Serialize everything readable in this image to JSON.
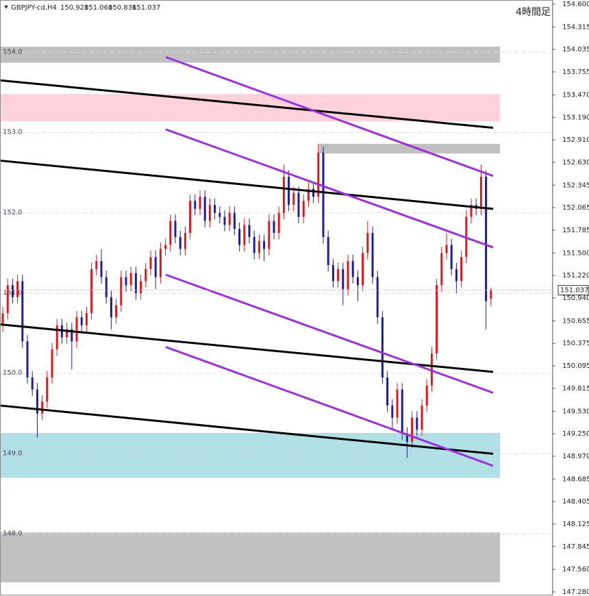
{
  "chart_data": {
    "type": "candlestick",
    "title": "4時間足",
    "symbol": "GBPJPY-cd,H4",
    "up_color": "#e8141c",
    "down_color": "#1c1c9c",
    "ylim": [
      147.28,
      154.6
    ],
    "yticks": [
      {
        "value": 154.6,
        "label": "154.600"
      },
      154.315,
      154.035,
      153.755,
      {
        "value": 153.47,
        "label": "153.470"
      },
      {
        "value": 153.19,
        "label": "153.190"
      },
      {
        "value": 152.91,
        "label": "152.910"
      },
      {
        "value": 152.63,
        "label": "152.630"
      },
      152.345,
      152.065,
      151.785,
      {
        "value": 151.5,
        "label": "151.500"
      },
      {
        "value": 151.22,
        "label": "151.220"
      },
      {
        "value": 150.94,
        "label": "150.940"
      },
      150.655,
      150.375,
      150.095,
      149.815,
      {
        "value": 149.53,
        "label": "149.530"
      },
      {
        "value": 149.25,
        "label": "149.250"
      },
      {
        "value": 148.97,
        "label": "148.970"
      },
      148.685,
      148.405,
      148.125,
      147.845,
      {
        "value": 147.56,
        "label": "147.560"
      },
      {
        "value": 147.28,
        "label": "147.280"
      }
    ],
    "levels": [
      {
        "value": 154,
        "label": "154.0"
      },
      {
        "value": 153,
        "label": "153.0"
      },
      {
        "value": 152,
        "label": "152.0"
      },
      {
        "value": 151,
        "label": "151.0"
      },
      {
        "value": 150,
        "label": "150.0"
      },
      {
        "value": 149,
        "label": "149.0"
      },
      {
        "value": 148,
        "label": "148.0"
      }
    ],
    "zones": [
      {
        "from": 153.87,
        "to": 154.07,
        "color": "#c0c0c0"
      },
      {
        "from": 153.14,
        "to": 153.48,
        "color": "#ffd1da"
      },
      {
        "from": 152.74,
        "to": 152.86,
        "color": "#c0c0c0"
      },
      {
        "from": 148.7,
        "to": 149.26,
        "color": "#b0e0e6"
      },
      {
        "from": 147.4,
        "to": 148.02,
        "color": "#c0c0c0"
      }
    ],
    "trendlines": [
      {
        "color": "#000000",
        "values": [
          153.65,
          153.06
        ]
      },
      {
        "color": "#000000",
        "values": [
          152.65,
          152.05
        ]
      },
      {
        "color": "#000000",
        "values": [
          150.61,
          150.02
        ]
      },
      {
        "color": "#000000",
        "values": [
          149.6,
          149.0
        ]
      },
      {
        "color": "#9b30d9",
        "values": [
          153.94,
          152.46
        ]
      },
      {
        "color": "#9b30d9",
        "values": [
          153.04,
          151.57
        ]
      },
      {
        "color": "#9b30d9",
        "values": [
          151.23,
          149.76
        ]
      },
      {
        "color": "#9b30d9",
        "values": [
          150.33,
          148.85
        ]
      }
    ],
    "open": [
      150.6,
      150.75,
      151.1,
      150.95,
      151.15,
      150.4,
      149.95,
      149.8,
      149.5,
      149.65,
      149.95,
      150.3,
      150.6,
      150.45,
      150.55,
      150.4,
      150.7,
      150.6,
      150.75,
      151.3,
      151.4,
      151.2,
      150.95,
      150.7,
      150.85,
      151.2,
      151.1,
      151.25,
      151.0,
      151.15,
      151.3,
      151.45,
      151.2,
      151.55,
      151.6,
      151.9,
      151.7,
      151.55,
      151.75,
      152.15,
      152.05,
      152.2,
      151.9,
      152.1,
      152.0,
      151.95,
      151.85,
      152.0,
      151.8,
      151.6,
      151.85,
      151.7,
      151.5,
      151.65,
      151.55,
      151.9,
      151.75,
      152.0,
      152.45,
      152.1,
      152.25,
      151.95,
      152.15,
      152.3,
      152.2,
      152.75,
      151.7,
      151.35,
      151.15,
      151.3,
      151.05,
      151.4,
      151.2,
      151.1,
      151.5,
      151.75,
      151.2,
      150.7,
      149.95,
      149.6,
      149.45,
      149.8,
      149.25,
      149.15,
      149.45,
      149.3,
      149.6,
      149.85,
      150.25,
      151.1,
      151.5,
      151.6,
      151.3,
      151.15,
      151.45,
      151.95,
      152.1,
      152.05,
      152.45,
      150.928
    ],
    "high": [
      150.83,
      151.18,
      151.18,
      151.23,
      151.23,
      150.48,
      150.03,
      149.88,
      149.73,
      150.03,
      150.38,
      150.68,
      150.68,
      150.63,
      150.63,
      150.78,
      150.78,
      150.83,
      151.38,
      151.48,
      151.55,
      151.28,
      151.03,
      150.93,
      151.28,
      151.28,
      151.33,
      151.33,
      151.23,
      151.38,
      151.53,
      151.53,
      151.63,
      151.68,
      151.98,
      151.98,
      151.78,
      151.83,
      152.23,
      152.23,
      152.28,
      152.28,
      152.18,
      152.18,
      152.08,
      152.03,
      152.08,
      152.08,
      151.88,
      151.93,
      151.93,
      151.78,
      151.73,
      151.73,
      151.98,
      151.98,
      152.08,
      152.6,
      152.53,
      152.33,
      152.33,
      152.23,
      152.38,
      152.38,
      152.86,
      152.83,
      151.78,
      151.43,
      151.38,
      151.38,
      151.48,
      151.48,
      151.28,
      151.58,
      151.9,
      151.83,
      151.28,
      150.78,
      150.03,
      149.68,
      149.88,
      149.88,
      149.33,
      149.53,
      149.53,
      149.68,
      149.93,
      150.33,
      151.18,
      151.58,
      151.75,
      151.68,
      151.38,
      151.53,
      152.03,
      152.18,
      152.18,
      152.6,
      152.53,
      151.068
    ],
    "low": [
      150.52,
      150.67,
      150.87,
      150.87,
      150.32,
      149.87,
      149.72,
      149.2,
      149.42,
      149.57,
      149.87,
      150.22,
      150.37,
      150.37,
      150.05,
      150.32,
      150.52,
      150.52,
      150.67,
      151.22,
      151.12,
      150.87,
      150.55,
      150.62,
      150.77,
      151.02,
      151.02,
      150.92,
      150.92,
      151.07,
      151.22,
      151.05,
      151.12,
      151.47,
      151.52,
      151.62,
      151.47,
      151.47,
      151.67,
      151.97,
      151.97,
      151.82,
      151.82,
      151.92,
      151.87,
      151.77,
      151.77,
      151.72,
      151.52,
      151.52,
      151.62,
      151.42,
      151.42,
      151.4,
      151.47,
      151.67,
      151.67,
      151.92,
      152.02,
      152.02,
      151.87,
      151.87,
      152.07,
      152.12,
      152.12,
      151.62,
      151.27,
      151.07,
      151.07,
      150.85,
      150.97,
      151.12,
      150.9,
      151.02,
      151.42,
      151.12,
      150.62,
      149.87,
      149.52,
      149.3,
      149.37,
      149.17,
      148.95,
      149.07,
      149.22,
      149.22,
      149.52,
      149.77,
      150.17,
      151.02,
      151.42,
      151.22,
      151.0,
      151.07,
      151.37,
      151.87,
      151.97,
      151.97,
      150.55,
      150.836
    ],
    "close": [
      150.75,
      151.1,
      150.95,
      151.15,
      150.4,
      149.95,
      149.8,
      149.5,
      149.65,
      149.95,
      150.3,
      150.6,
      150.45,
      150.55,
      150.4,
      150.7,
      150.6,
      150.75,
      151.3,
      151.4,
      151.2,
      150.95,
      150.7,
      150.85,
      151.2,
      151.1,
      151.25,
      151.0,
      151.15,
      151.3,
      151.45,
      151.2,
      151.55,
      151.6,
      151.9,
      151.7,
      151.55,
      151.75,
      152.15,
      152.05,
      152.2,
      151.9,
      152.1,
      152.0,
      151.95,
      151.85,
      152.0,
      151.8,
      151.6,
      151.85,
      151.7,
      151.5,
      151.65,
      151.55,
      151.9,
      151.75,
      152.0,
      152.45,
      152.1,
      152.25,
      151.95,
      152.15,
      152.3,
      152.2,
      152.75,
      151.7,
      151.35,
      151.15,
      151.3,
      151.05,
      151.4,
      151.2,
      151.1,
      151.5,
      151.75,
      151.2,
      150.7,
      149.95,
      149.6,
      149.45,
      149.8,
      149.25,
      149.15,
      149.45,
      149.3,
      149.6,
      149.85,
      150.25,
      151.1,
      151.5,
      151.6,
      151.3,
      151.15,
      151.45,
      151.95,
      152.1,
      152.05,
      152.45,
      150.9,
      151.037
    ]
  }
}
